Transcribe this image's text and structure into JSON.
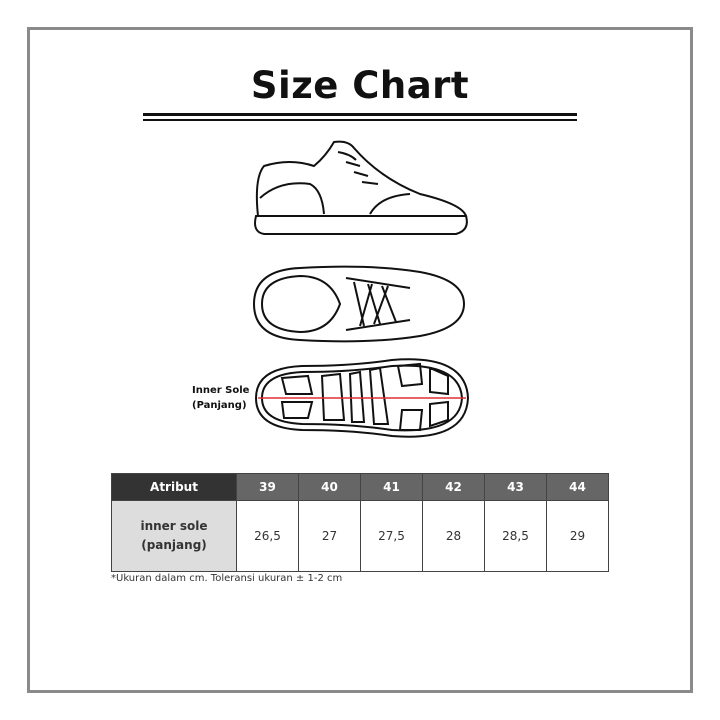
{
  "title": "Size Chart",
  "sole_label": [
    "Inner Sole",
    "(Panjang)"
  ],
  "table": {
    "header": [
      "Atribut",
      "39",
      "40",
      "41",
      "42",
      "43",
      "44"
    ],
    "row_label": [
      "inner sole",
      "(panjang)"
    ],
    "values": [
      "26,5",
      "27",
      "27,5",
      "28",
      "28,5",
      "29"
    ]
  },
  "note": "*Ukuran dalam cm. Toleransi ukuran ± 1-2 cm",
  "colors": {
    "measure_line": "#e03030",
    "header_first": "#333333",
    "header": "#666666",
    "row_label_bg": "#dddddd"
  }
}
